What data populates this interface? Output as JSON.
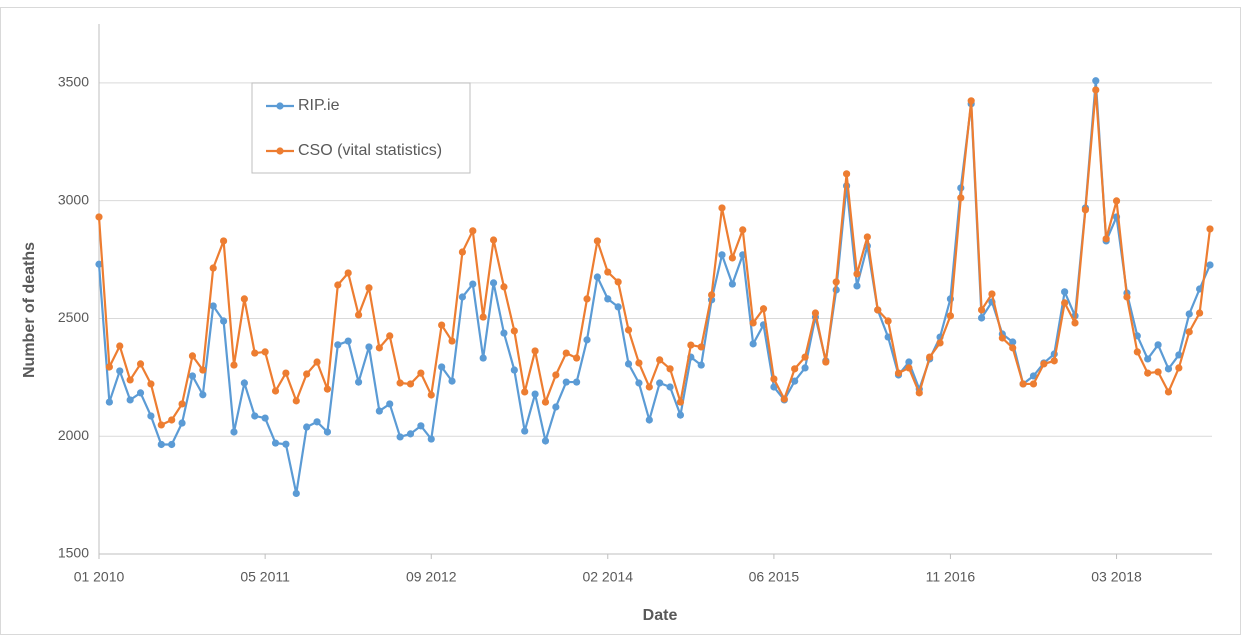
{
  "chart_data": {
    "type": "line",
    "y_label": "Number of deaths",
    "x_label": "Date",
    "x": [
      "2010-01",
      "2010-02",
      "2010-03",
      "2010-04",
      "2010-05",
      "2010-06",
      "2010-07",
      "2010-08",
      "2010-09",
      "2010-10",
      "2010-11",
      "2010-12",
      "2011-01",
      "2011-02",
      "2011-03",
      "2011-04",
      "2011-05",
      "2011-06",
      "2011-07",
      "2011-08",
      "2011-09",
      "2011-10",
      "2011-11",
      "2011-12",
      "2012-01",
      "2012-02",
      "2012-03",
      "2012-04",
      "2012-05",
      "2012-06",
      "2012-07",
      "2012-08",
      "2012-09",
      "2012-10",
      "2012-11",
      "2012-12",
      "2013-01",
      "2013-02",
      "2013-03",
      "2013-04",
      "2013-05",
      "2013-06",
      "2013-07",
      "2013-08",
      "2013-09",
      "2013-10",
      "2013-11",
      "2013-12",
      "2014-01",
      "2014-02",
      "2014-03",
      "2014-04",
      "2014-05",
      "2014-06",
      "2014-07",
      "2014-08",
      "2014-09",
      "2014-10",
      "2014-11",
      "2014-12",
      "2015-01",
      "2015-02",
      "2015-03",
      "2015-04",
      "2015-05",
      "2015-06",
      "2015-07",
      "2015-08",
      "2015-09",
      "2015-10",
      "2015-11",
      "2015-12",
      "2016-01",
      "2016-02",
      "2016-03",
      "2016-04",
      "2016-05",
      "2016-06",
      "2016-07",
      "2016-08",
      "2016-09",
      "2016-10",
      "2016-11",
      "2016-12",
      "2017-01",
      "2017-02",
      "2017-03",
      "2017-04",
      "2017-05",
      "2017-06",
      "2017-07",
      "2017-08",
      "2017-09",
      "2017-10",
      "2017-11",
      "2017-12",
      "2018-01",
      "2018-02",
      "2018-03",
      "2018-04",
      "2018-05",
      "2018-06",
      "2018-07",
      "2018-08",
      "2018-09",
      "2018-10",
      "2018-11",
      "2018-12"
    ],
    "series": [
      {
        "name": "RIP.ie",
        "color": "#5b9bd5",
        "values": [
          2730,
          2145,
          2277,
          2154,
          2184,
          2086,
          1965,
          1965,
          2056,
          2256,
          2176,
          2553,
          2489,
          2018,
          2226,
          2086,
          2077,
          1971,
          1966,
          1757,
          2039,
          2061,
          2018,
          2388,
          2404,
          2230,
          2379,
          2107,
          2137,
          1997,
          2010,
          2044,
          1988,
          2294,
          2234,
          2591,
          2646,
          2332,
          2651,
          2438,
          2281,
          2022,
          2179,
          1980,
          2124,
          2230,
          2230,
          2409,
          2676,
          2583,
          2549,
          2307,
          2226,
          2069,
          2226,
          2209,
          2090,
          2336,
          2302,
          2579,
          2770,
          2646,
          2770,
          2392,
          2473,
          2209,
          2154,
          2234,
          2290,
          2506,
          2320,
          2621,
          3063,
          2638,
          2808,
          2536,
          2421,
          2260,
          2315,
          2200,
          2328,
          2421,
          2583,
          3054,
          3411,
          2502,
          2570,
          2434,
          2400,
          2222,
          2256,
          2311,
          2349,
          2613,
          2511,
          2969,
          3509,
          2829,
          2931,
          2608,
          2426,
          2328,
          2388,
          2286,
          2345,
          2519,
          2625,
          2727
        ]
      },
      {
        "name": "CSO (vital statistics)",
        "color": "#ed7d31",
        "values": [
          2931,
          2294,
          2383,
          2239,
          2307,
          2222,
          2048,
          2069,
          2137,
          2341,
          2281,
          2714,
          2829,
          2302,
          2583,
          2353,
          2358,
          2192,
          2268,
          2150,
          2264,
          2315,
          2200,
          2642,
          2693,
          2515,
          2630,
          2375,
          2426,
          2226,
          2222,
          2268,
          2175,
          2472,
          2404,
          2782,
          2872,
          2506,
          2833,
          2634,
          2447,
          2188,
          2362,
          2145,
          2260,
          2353,
          2332,
          2583,
          2829,
          2697,
          2655,
          2451,
          2311,
          2209,
          2324,
          2286,
          2145,
          2387,
          2379,
          2600,
          2969,
          2757,
          2876,
          2481,
          2541,
          2243,
          2158,
          2286,
          2336,
          2523,
          2315,
          2655,
          3114,
          2689,
          2846,
          2536,
          2489,
          2268,
          2290,
          2184,
          2336,
          2396,
          2511,
          3012,
          3424,
          2536,
          2604,
          2417,
          2375,
          2222,
          2222,
          2307,
          2320,
          2566,
          2481,
          2961,
          3470,
          2838,
          2999,
          2591,
          2358,
          2268,
          2273,
          2188,
          2290,
          2443,
          2523,
          2880
        ]
      }
    ],
    "xlim": [
      "2010-01",
      "2018-12"
    ],
    "xticks": [
      {
        "value": "2010-01",
        "label": "01 2010"
      },
      {
        "value": "2011-05",
        "label": "05 2011"
      },
      {
        "value": "2012-09",
        "label": "09 2012"
      },
      {
        "value": "2014-02",
        "label": "02 2014"
      },
      {
        "value": "2015-06",
        "label": "06 2015"
      },
      {
        "value": "2016-11",
        "label": "11 2016"
      },
      {
        "value": "2018-03",
        "label": "03 2018"
      }
    ],
    "ylim": [
      1500,
      3750
    ],
    "yticks": [
      1500,
      2000,
      2500,
      3000,
      3500
    ],
    "grid": true,
    "legend": "upper left"
  }
}
